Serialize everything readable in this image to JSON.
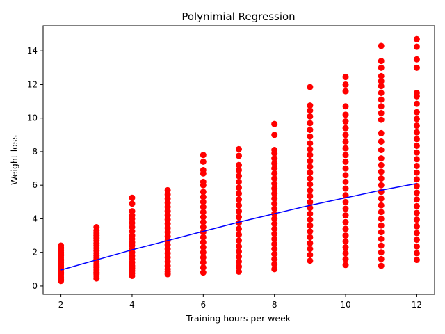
{
  "chart_data": {
    "type": "scatter",
    "title": "Polynimial Regression",
    "xlabel": "Training hours per week",
    "ylabel": "Weight loss",
    "xlim": [
      1.5,
      12.5
    ],
    "ylim": [
      -0.5,
      15.5
    ],
    "xticks": [
      2,
      4,
      6,
      8,
      10,
      12
    ],
    "yticks": [
      0,
      2,
      4,
      6,
      8,
      10,
      12,
      14
    ],
    "grid": false,
    "series": [
      {
        "kind": "scatter",
        "color": "#ff0000",
        "points": [
          [
            2,
            0.3
          ],
          [
            2,
            0.4
          ],
          [
            2,
            0.5
          ],
          [
            2,
            0.6
          ],
          [
            2,
            0.7
          ],
          [
            2,
            0.8
          ],
          [
            2,
            0.9
          ],
          [
            2,
            1.0
          ],
          [
            2,
            1.1
          ],
          [
            2,
            1.2
          ],
          [
            2,
            1.3
          ],
          [
            2,
            1.4
          ],
          [
            2,
            1.5
          ],
          [
            2,
            1.6
          ],
          [
            2,
            1.7
          ],
          [
            2,
            1.8
          ],
          [
            2,
            1.9
          ],
          [
            2,
            2.0
          ],
          [
            2,
            2.1
          ],
          [
            2,
            2.2
          ],
          [
            2,
            2.3
          ],
          [
            2,
            2.4
          ],
          [
            3,
            0.45
          ],
          [
            3,
            0.6
          ],
          [
            3,
            0.7
          ],
          [
            3,
            0.8
          ],
          [
            3,
            0.9
          ],
          [
            3,
            1.0
          ],
          [
            3,
            1.1
          ],
          [
            3,
            1.2
          ],
          [
            3,
            1.3
          ],
          [
            3,
            1.45
          ],
          [
            3,
            1.6
          ],
          [
            3,
            1.7
          ],
          [
            3,
            1.8
          ],
          [
            3,
            1.95
          ],
          [
            3,
            2.1
          ],
          [
            3,
            2.25
          ],
          [
            3,
            2.4
          ],
          [
            3,
            2.55
          ],
          [
            3,
            2.7
          ],
          [
            3,
            2.85
          ],
          [
            3,
            3.0
          ],
          [
            3,
            3.15
          ],
          [
            3,
            3.3
          ],
          [
            3,
            3.5
          ],
          [
            4,
            0.6
          ],
          [
            4,
            0.75
          ],
          [
            4,
            0.9
          ],
          [
            4,
            1.05
          ],
          [
            4,
            1.2
          ],
          [
            4,
            1.4
          ],
          [
            4,
            1.6
          ],
          [
            4,
            1.8
          ],
          [
            4,
            2.0
          ],
          [
            4,
            2.2
          ],
          [
            4,
            2.4
          ],
          [
            4,
            2.6
          ],
          [
            4,
            2.8
          ],
          [
            4,
            3.0
          ],
          [
            4,
            3.25
          ],
          [
            4,
            3.5
          ],
          [
            4,
            3.75
          ],
          [
            4,
            4.0
          ],
          [
            4,
            4.2
          ],
          [
            4,
            4.45
          ],
          [
            4,
            4.9
          ],
          [
            4,
            5.25
          ],
          [
            5,
            0.7
          ],
          [
            5,
            0.85
          ],
          [
            5,
            1.0
          ],
          [
            5,
            1.2
          ],
          [
            5,
            1.45
          ],
          [
            5,
            1.7
          ],
          [
            5,
            1.95
          ],
          [
            5,
            2.2
          ],
          [
            5,
            2.45
          ],
          [
            5,
            2.7
          ],
          [
            5,
            2.95
          ],
          [
            5,
            3.2
          ],
          [
            5,
            3.45
          ],
          [
            5,
            3.7
          ],
          [
            5,
            3.95
          ],
          [
            5,
            4.2
          ],
          [
            5,
            4.45
          ],
          [
            5,
            4.7
          ],
          [
            5,
            4.95
          ],
          [
            5,
            5.2
          ],
          [
            5,
            5.45
          ],
          [
            5,
            5.7
          ],
          [
            6,
            0.8
          ],
          [
            6,
            1.1
          ],
          [
            6,
            1.4
          ],
          [
            6,
            1.7
          ],
          [
            6,
            2.0
          ],
          [
            6,
            2.3
          ],
          [
            6,
            2.6
          ],
          [
            6,
            2.9
          ],
          [
            6,
            3.2
          ],
          [
            6,
            3.5
          ],
          [
            6,
            3.8
          ],
          [
            6,
            4.1
          ],
          [
            6,
            4.4
          ],
          [
            6,
            4.7
          ],
          [
            6,
            5.0
          ],
          [
            6,
            5.3
          ],
          [
            6,
            5.6
          ],
          [
            6,
            6.0
          ],
          [
            6,
            6.2
          ],
          [
            6,
            6.7
          ],
          [
            6,
            6.9
          ],
          [
            6,
            7.4
          ],
          [
            6,
            7.8
          ],
          [
            7,
            0.85
          ],
          [
            7,
            1.15
          ],
          [
            7,
            1.45
          ],
          [
            7,
            1.75
          ],
          [
            7,
            2.05
          ],
          [
            7,
            2.35
          ],
          [
            7,
            2.7
          ],
          [
            7,
            3.05
          ],
          [
            7,
            3.4
          ],
          [
            7,
            3.75
          ],
          [
            7,
            4.1
          ],
          [
            7,
            4.45
          ],
          [
            7,
            4.8
          ],
          [
            7,
            5.15
          ],
          [
            7,
            5.5
          ],
          [
            7,
            5.85
          ],
          [
            7,
            6.2
          ],
          [
            7,
            6.55
          ],
          [
            7,
            6.9
          ],
          [
            7,
            7.2
          ],
          [
            7,
            7.75
          ],
          [
            7,
            8.15
          ],
          [
            8,
            1.0
          ],
          [
            8,
            1.3
          ],
          [
            8,
            1.6
          ],
          [
            8,
            1.9
          ],
          [
            8,
            2.2
          ],
          [
            8,
            2.5
          ],
          [
            8,
            2.8
          ],
          [
            8,
            3.1
          ],
          [
            8,
            3.4
          ],
          [
            8,
            3.7
          ],
          [
            8,
            4.0
          ],
          [
            8,
            4.3
          ],
          [
            8,
            4.6
          ],
          [
            8,
            4.9
          ],
          [
            8,
            5.2
          ],
          [
            8,
            5.5
          ],
          [
            8,
            5.8
          ],
          [
            8,
            6.1
          ],
          [
            8,
            6.4
          ],
          [
            8,
            6.7
          ],
          [
            8,
            7.0
          ],
          [
            8,
            7.3
          ],
          [
            8,
            7.6
          ],
          [
            8,
            7.9
          ],
          [
            8,
            8.1
          ],
          [
            8,
            9.0
          ],
          [
            8,
            9.65
          ],
          [
            9,
            1.5
          ],
          [
            9,
            1.85
          ],
          [
            9,
            2.2
          ],
          [
            9,
            2.55
          ],
          [
            9,
            2.9
          ],
          [
            9,
            3.25
          ],
          [
            9,
            3.6
          ],
          [
            9,
            3.95
          ],
          [
            9,
            4.3
          ],
          [
            9,
            4.65
          ],
          [
            9,
            5.0
          ],
          [
            9,
            5.35
          ],
          [
            9,
            5.7
          ],
          [
            9,
            6.05
          ],
          [
            9,
            6.4
          ],
          [
            9,
            6.75
          ],
          [
            9,
            7.1
          ],
          [
            9,
            7.45
          ],
          [
            9,
            7.8
          ],
          [
            9,
            8.15
          ],
          [
            9,
            8.5
          ],
          [
            9,
            8.9
          ],
          [
            9,
            9.3
          ],
          [
            9,
            9.7
          ],
          [
            9,
            10.1
          ],
          [
            9,
            10.45
          ],
          [
            9,
            10.75
          ],
          [
            9,
            11.85
          ],
          [
            10,
            1.25
          ],
          [
            10,
            1.6
          ],
          [
            10,
            1.95
          ],
          [
            10,
            2.3
          ],
          [
            10,
            2.65
          ],
          [
            10,
            3.0
          ],
          [
            10,
            3.4
          ],
          [
            10,
            3.8
          ],
          [
            10,
            4.2
          ],
          [
            10,
            4.6
          ],
          [
            10,
            5.0
          ],
          [
            10,
            5.4
          ],
          [
            10,
            5.8
          ],
          [
            10,
            6.2
          ],
          [
            10,
            6.6
          ],
          [
            10,
            7.0
          ],
          [
            10,
            7.4
          ],
          [
            10,
            7.8
          ],
          [
            10,
            8.2
          ],
          [
            10,
            8.6
          ],
          [
            10,
            9.0
          ],
          [
            10,
            9.4
          ],
          [
            10,
            9.8
          ],
          [
            10,
            10.2
          ],
          [
            10,
            10.7
          ],
          [
            10,
            11.6
          ],
          [
            10,
            12.0
          ],
          [
            10,
            12.45
          ],
          [
            11,
            1.2
          ],
          [
            11,
            1.6
          ],
          [
            11,
            2.0
          ],
          [
            11,
            2.4
          ],
          [
            11,
            2.8
          ],
          [
            11,
            3.2
          ],
          [
            11,
            3.6
          ],
          [
            11,
            4.0
          ],
          [
            11,
            4.4
          ],
          [
            11,
            4.8
          ],
          [
            11,
            5.2
          ],
          [
            11,
            5.6
          ],
          [
            11,
            6.0
          ],
          [
            11,
            6.4
          ],
          [
            11,
            6.8
          ],
          [
            11,
            7.2
          ],
          [
            11,
            7.6
          ],
          [
            11,
            8.1
          ],
          [
            11,
            8.6
          ],
          [
            11,
            9.1
          ],
          [
            11,
            9.9
          ],
          [
            11,
            10.3
          ],
          [
            11,
            10.7
          ],
          [
            11,
            11.1
          ],
          [
            11,
            11.5
          ],
          [
            11,
            11.9
          ],
          [
            11,
            12.2
          ],
          [
            11,
            12.5
          ],
          [
            11,
            13.0
          ],
          [
            11,
            13.4
          ],
          [
            11,
            14.3
          ],
          [
            12,
            1.55
          ],
          [
            12,
            1.95
          ],
          [
            12,
            2.35
          ],
          [
            12,
            2.75
          ],
          [
            12,
            3.15
          ],
          [
            12,
            3.55
          ],
          [
            12,
            3.95
          ],
          [
            12,
            4.35
          ],
          [
            12,
            4.75
          ],
          [
            12,
            5.15
          ],
          [
            12,
            5.55
          ],
          [
            12,
            5.95
          ],
          [
            12,
            6.35
          ],
          [
            12,
            6.75
          ],
          [
            12,
            7.15
          ],
          [
            12,
            7.55
          ],
          [
            12,
            7.95
          ],
          [
            12,
            8.35
          ],
          [
            12,
            8.75
          ],
          [
            12,
            9.15
          ],
          [
            12,
            9.55
          ],
          [
            12,
            9.95
          ],
          [
            12,
            10.35
          ],
          [
            12,
            10.85
          ],
          [
            12,
            11.3
          ],
          [
            12,
            11.5
          ],
          [
            12,
            13.0
          ],
          [
            12,
            13.5
          ],
          [
            12,
            14.25
          ],
          [
            12,
            14.7
          ]
        ]
      },
      {
        "kind": "line",
        "color": "#0000ff",
        "x": [
          2,
          3,
          4,
          5,
          6,
          7,
          8,
          9,
          10,
          11,
          12
        ],
        "y": [
          0.95,
          1.55,
          2.15,
          2.7,
          3.25,
          3.8,
          4.3,
          4.8,
          5.25,
          5.7,
          6.1
        ]
      }
    ]
  }
}
